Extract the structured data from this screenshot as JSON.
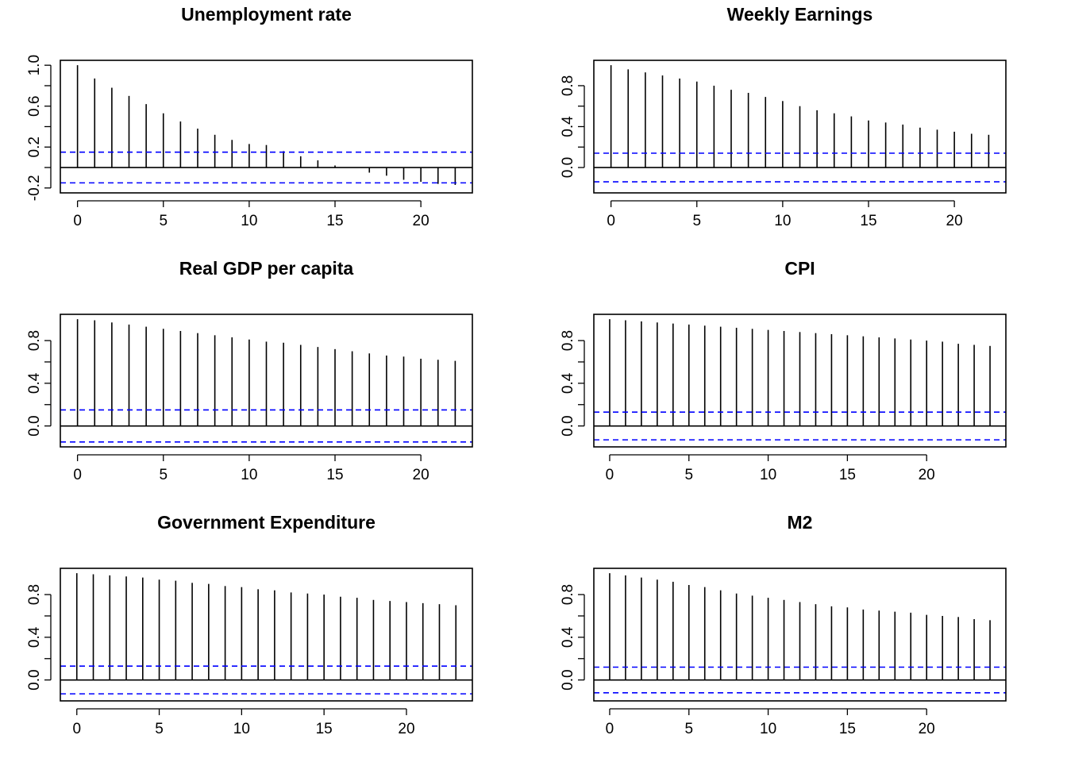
{
  "colors": {
    "spike": "#000000",
    "confidence_band": "#0000ff",
    "frame": "#000000"
  },
  "chart_data": [
    {
      "type": "bar",
      "title": "Unemployment rate",
      "xlim": [
        -1,
        23
      ],
      "ylim": [
        -0.2,
        1.0
      ],
      "xticks": [
        0,
        5,
        10,
        15,
        20
      ],
      "yticks": [
        -0.2,
        0.2,
        0.6,
        1.0
      ],
      "yticklabels": [
        "-0.2",
        "0.2",
        "0.6",
        "1.0"
      ],
      "lags": [
        0,
        1,
        2,
        3,
        4,
        5,
        6,
        7,
        8,
        9,
        10,
        11,
        12,
        13,
        14,
        15,
        16,
        17,
        18,
        19,
        20,
        21,
        22
      ],
      "values": [
        1.0,
        0.87,
        0.78,
        0.7,
        0.62,
        0.53,
        0.45,
        0.38,
        0.32,
        0.27,
        0.23,
        0.22,
        0.16,
        0.11,
        0.07,
        0.02,
        0.0,
        -0.05,
        -0.08,
        -0.12,
        -0.14,
        -0.16,
        -0.17
      ],
      "confidence_bound": 0.15
    },
    {
      "type": "bar",
      "title": "Weekly Earnings",
      "xlim": [
        -1,
        23
      ],
      "ylim": [
        -0.2,
        1.0
      ],
      "xticks": [
        0,
        5,
        10,
        15,
        20
      ],
      "yticks": [
        0.0,
        0.4,
        0.8
      ],
      "yticklabels": [
        "0.0",
        "0.4",
        "0.8"
      ],
      "lags": [
        0,
        1,
        2,
        3,
        4,
        5,
        6,
        7,
        8,
        9,
        10,
        11,
        12,
        13,
        14,
        15,
        16,
        17,
        18,
        19,
        20,
        21,
        22
      ],
      "values": [
        1.0,
        0.96,
        0.93,
        0.9,
        0.87,
        0.84,
        0.8,
        0.76,
        0.73,
        0.69,
        0.65,
        0.6,
        0.56,
        0.53,
        0.5,
        0.46,
        0.44,
        0.42,
        0.39,
        0.37,
        0.35,
        0.33,
        0.32
      ],
      "confidence_bound": 0.14
    },
    {
      "type": "bar",
      "title": "Real GDP per capita",
      "xlim": [
        -1,
        23
      ],
      "ylim": [
        -0.15,
        1.0
      ],
      "xticks": [
        0,
        5,
        10,
        15,
        20
      ],
      "yticks": [
        0.0,
        0.4,
        0.8
      ],
      "yticklabels": [
        "0.0",
        "0.4",
        "0.8"
      ],
      "lags": [
        0,
        1,
        2,
        3,
        4,
        5,
        6,
        7,
        8,
        9,
        10,
        11,
        12,
        13,
        14,
        15,
        16,
        17,
        18,
        19,
        20,
        21,
        22
      ],
      "values": [
        1.0,
        0.99,
        0.97,
        0.95,
        0.93,
        0.91,
        0.89,
        0.87,
        0.85,
        0.83,
        0.81,
        0.79,
        0.78,
        0.76,
        0.74,
        0.72,
        0.7,
        0.68,
        0.66,
        0.65,
        0.63,
        0.62,
        0.61
      ],
      "confidence_bound": 0.15
    },
    {
      "type": "bar",
      "title": "CPI",
      "xlim": [
        -1,
        25
      ],
      "ylim": [
        -0.15,
        1.0
      ],
      "xticks": [
        0,
        5,
        10,
        15,
        20
      ],
      "yticks": [
        0.0,
        0.4,
        0.8
      ],
      "yticklabels": [
        "0.0",
        "0.4",
        "0.8"
      ],
      "lags": [
        0,
        1,
        2,
        3,
        4,
        5,
        6,
        7,
        8,
        9,
        10,
        11,
        12,
        13,
        14,
        15,
        16,
        17,
        18,
        19,
        20,
        21,
        22,
        23,
        24
      ],
      "values": [
        1.0,
        0.99,
        0.98,
        0.97,
        0.96,
        0.95,
        0.94,
        0.93,
        0.92,
        0.91,
        0.9,
        0.89,
        0.88,
        0.87,
        0.86,
        0.85,
        0.84,
        0.83,
        0.82,
        0.81,
        0.8,
        0.79,
        0.77,
        0.76,
        0.75
      ],
      "confidence_bound": 0.13
    },
    {
      "type": "bar",
      "title": "Government Expenditure",
      "xlim": [
        -1,
        24
      ],
      "ylim": [
        -0.15,
        1.0
      ],
      "xticks": [
        0,
        5,
        10,
        15,
        20
      ],
      "yticks": [
        0.0,
        0.4,
        0.8
      ],
      "yticklabels": [
        "0.0",
        "0.4",
        "0.8"
      ],
      "lags": [
        0,
        1,
        2,
        3,
        4,
        5,
        6,
        7,
        8,
        9,
        10,
        11,
        12,
        13,
        14,
        15,
        16,
        17,
        18,
        19,
        20,
        21,
        22,
        23
      ],
      "values": [
        1.0,
        0.99,
        0.98,
        0.97,
        0.96,
        0.94,
        0.93,
        0.91,
        0.9,
        0.88,
        0.87,
        0.85,
        0.84,
        0.82,
        0.81,
        0.8,
        0.78,
        0.77,
        0.75,
        0.74,
        0.73,
        0.72,
        0.71,
        0.7
      ],
      "confidence_bound": 0.13
    },
    {
      "type": "bar",
      "title": "M2",
      "xlim": [
        -1,
        25
      ],
      "ylim": [
        -0.15,
        1.0
      ],
      "xticks": [
        0,
        5,
        10,
        15,
        20
      ],
      "yticks": [
        0.0,
        0.4,
        0.8
      ],
      "yticklabels": [
        "0.0",
        "0.4",
        "0.8"
      ],
      "lags": [
        0,
        1,
        2,
        3,
        4,
        5,
        6,
        7,
        8,
        9,
        10,
        11,
        12,
        13,
        14,
        15,
        16,
        17,
        18,
        19,
        20,
        21,
        22,
        23,
        24
      ],
      "values": [
        1.0,
        0.98,
        0.96,
        0.94,
        0.92,
        0.89,
        0.87,
        0.84,
        0.81,
        0.79,
        0.77,
        0.75,
        0.73,
        0.71,
        0.69,
        0.68,
        0.66,
        0.65,
        0.64,
        0.63,
        0.61,
        0.6,
        0.59,
        0.57,
        0.56
      ],
      "confidence_bound": 0.12
    }
  ]
}
